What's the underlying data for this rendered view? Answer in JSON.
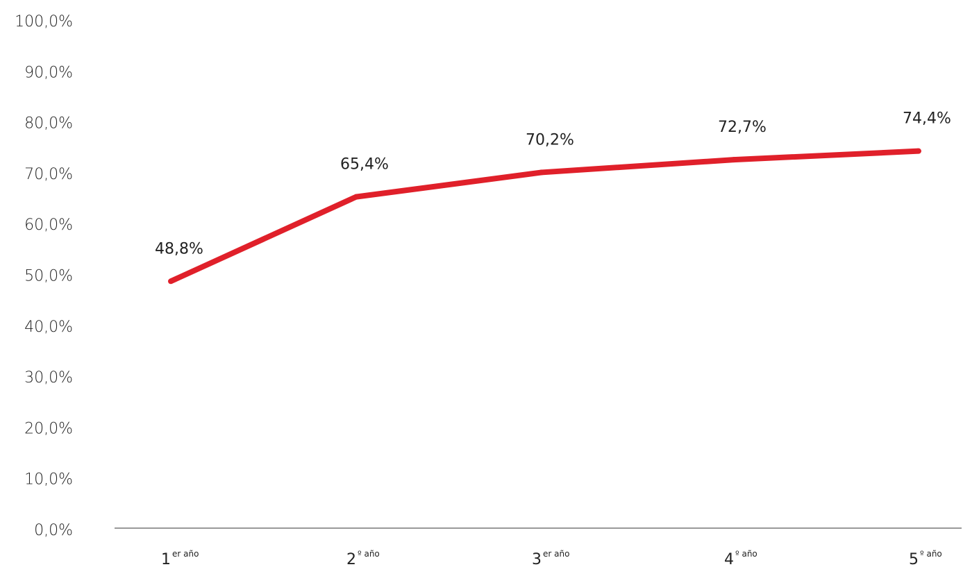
{
  "chart_data": {
    "type": "line",
    "title": "",
    "xlabel": "",
    "ylabel": "",
    "ylim": [
      0,
      100
    ],
    "y_ticks": [
      "0,0%",
      "10,0%",
      "20,0%",
      "30,0%",
      "40,0%",
      "50,0%",
      "60,0%",
      "70,0%",
      "80,0%",
      "90,0%",
      "100,0%"
    ],
    "categories": [
      {
        "main": "1",
        "sup": "er año"
      },
      {
        "main": "2",
        "sup": "º año"
      },
      {
        "main": "3",
        "sup": "er año"
      },
      {
        "main": "4",
        "sup": "º año"
      },
      {
        "main": "5",
        "sup": "º año"
      }
    ],
    "series": [
      {
        "values": [
          48.8,
          65.4,
          70.2,
          72.7,
          74.4
        ],
        "labels": [
          "48,8%",
          "65,4%",
          "70,2%",
          "72,7%",
          "74,4%"
        ],
        "color": "#e0202a"
      }
    ],
    "grid": false,
    "legend": "none"
  }
}
